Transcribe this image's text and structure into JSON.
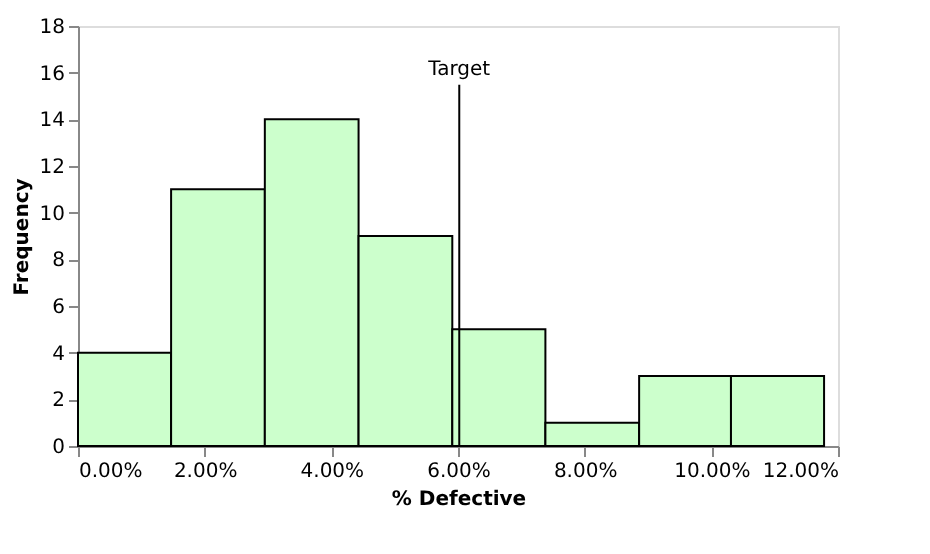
{
  "chart_data": {
    "type": "histogram",
    "xlabel": "% Defective",
    "ylabel": "Frequency",
    "bins": [
      0,
      1.47,
      2.95,
      4.43,
      5.91,
      7.38,
      8.86,
      10.31,
      11.78
    ],
    "values": [
      4,
      11,
      14,
      9,
      5,
      1,
      3,
      3
    ],
    "color": "#ccffcc",
    "xlim": [
      0,
      12
    ],
    "xticks": [
      {
        "value": 0,
        "label": "0.00%"
      },
      {
        "value": 2,
        "label": "2.00%"
      },
      {
        "value": 4,
        "label": "4.00%"
      },
      {
        "value": 6,
        "label": "6.00%"
      },
      {
        "value": 8,
        "label": "8.00%"
      },
      {
        "value": 10,
        "label": "10.00%"
      },
      {
        "value": 12,
        "label": "12.00%"
      }
    ],
    "ylim": [
      0,
      18
    ],
    "yticks": [
      0,
      2,
      4,
      6,
      8,
      10,
      12,
      14,
      16,
      18
    ],
    "grid": false,
    "ref_lines": [
      {
        "axis": "x",
        "value": 6.02,
        "label": "Target"
      }
    ]
  }
}
